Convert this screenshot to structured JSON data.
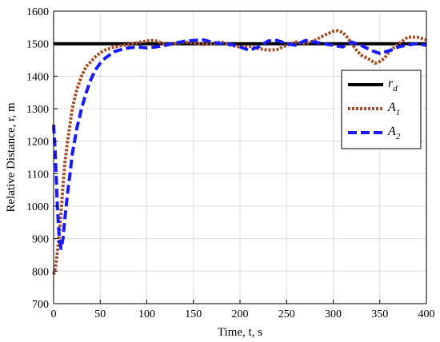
{
  "chart_data": {
    "type": "line",
    "xlabel": "Time, t, s",
    "ylabel": "Relative Distance, r, m",
    "xlim": [
      0,
      400
    ],
    "ylim": [
      700,
      1600
    ],
    "xticks": [
      0,
      50,
      100,
      150,
      200,
      250,
      300,
      350,
      400
    ],
    "yticks": [
      700,
      800,
      900,
      1000,
      1100,
      1200,
      1300,
      1400,
      1500,
      1600
    ],
    "grid": true,
    "legend_position": "right",
    "series": [
      {
        "name": "r_d",
        "legend_main": "r",
        "legend_sub": "d",
        "color": "#000000",
        "style": "solid",
        "x": [
          0,
          400
        ],
        "y": [
          1500,
          1500
        ]
      },
      {
        "name": "A_1",
        "legend_main": "A",
        "legend_sub": "1",
        "color": "#a0522d",
        "style": "dotted",
        "x": [
          0,
          2,
          5,
          8,
          10,
          12,
          15,
          18,
          20,
          25,
          30,
          35,
          40,
          45,
          50,
          55,
          60,
          65,
          70,
          75,
          80,
          85,
          90,
          95,
          100,
          105,
          110,
          115,
          120,
          130,
          140,
          150,
          160,
          170,
          180,
          190,
          200,
          210,
          220,
          230,
          240,
          250,
          260,
          270,
          280,
          290,
          300,
          305,
          310,
          315,
          320,
          325,
          330,
          340,
          345,
          350,
          355,
          360,
          370,
          380,
          390,
          400
        ],
        "y": [
          790,
          810,
          880,
          980,
          1060,
          1130,
          1200,
          1260,
          1300,
          1360,
          1400,
          1430,
          1445,
          1460,
          1472,
          1480,
          1485,
          1490,
          1492,
          1495,
          1497,
          1500,
          1503,
          1506,
          1508,
          1510,
          1508,
          1503,
          1496,
          1500,
          1505,
          1503,
          1498,
          1500,
          1505,
          1495,
          1490,
          1492,
          1485,
          1480,
          1482,
          1495,
          1505,
          1500,
          1510,
          1525,
          1538,
          1540,
          1535,
          1520,
          1500,
          1480,
          1465,
          1450,
          1440,
          1445,
          1455,
          1475,
          1500,
          1520,
          1520,
          1512
        ]
      },
      {
        "name": "A_2",
        "legend_main": "A",
        "legend_sub": "2",
        "color": "#1a1aff",
        "style": "dashed",
        "x": [
          0,
          2,
          4,
          6,
          8,
          10,
          12,
          15,
          18,
          20,
          25,
          30,
          35,
          40,
          45,
          50,
          55,
          60,
          65,
          70,
          75,
          80,
          90,
          100,
          110,
          120,
          130,
          140,
          150,
          160,
          170,
          180,
          190,
          200,
          210,
          220,
          230,
          240,
          250,
          260,
          270,
          280,
          290,
          300,
          310,
          320,
          330,
          340,
          350,
          360,
          370,
          380,
          390,
          400
        ],
        "y": [
          1250,
          1150,
          1000,
          900,
          870,
          900,
          960,
          1040,
          1110,
          1160,
          1240,
          1300,
          1350,
          1390,
          1420,
          1440,
          1455,
          1465,
          1475,
          1480,
          1483,
          1487,
          1490,
          1487,
          1490,
          1495,
          1502,
          1507,
          1510,
          1512,
          1505,
          1500,
          1498,
          1490,
          1480,
          1490,
          1508,
          1510,
          1500,
          1495,
          1510,
          1505,
          1500,
          1495,
          1490,
          1505,
          1495,
          1480,
          1470,
          1478,
          1490,
          1496,
          1500,
          1495
        ]
      }
    ]
  }
}
